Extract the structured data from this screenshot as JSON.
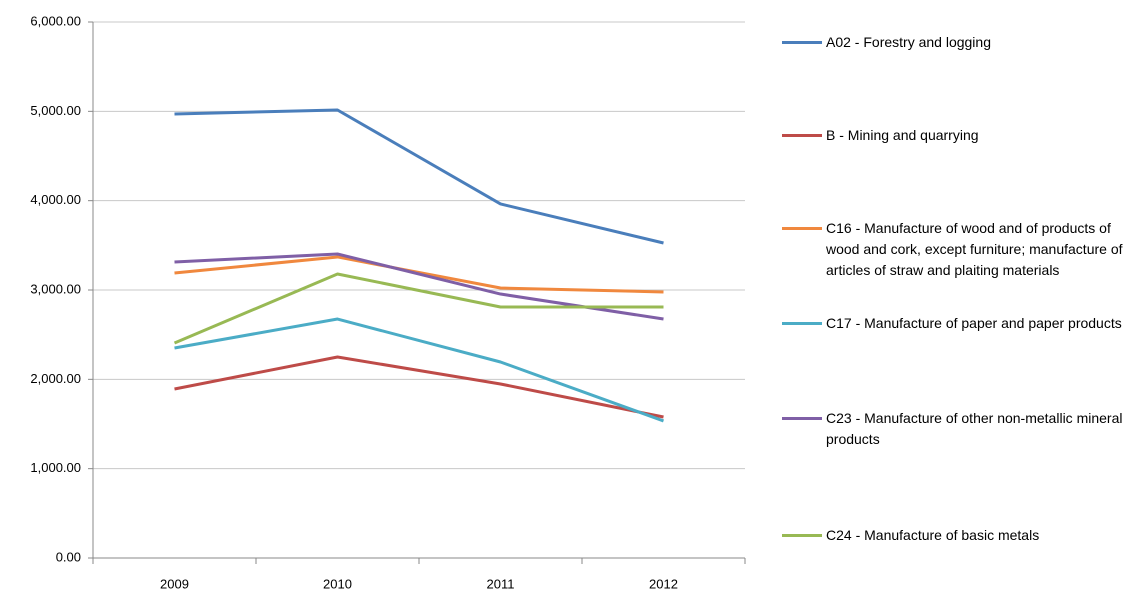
{
  "chart_data": {
    "type": "line",
    "categories": [
      "2009",
      "2010",
      "2011",
      "2012"
    ],
    "series": [
      {
        "name": "A02 - Forestry and logging",
        "color": "#4a7ebb",
        "values": [
          4970,
          5015,
          3963,
          3526
        ]
      },
      {
        "name": "B - Mining and quarrying",
        "color": "#be4b48",
        "values": [
          1892,
          2250,
          1948,
          1578
        ]
      },
      {
        "name": "C16 - Manufacture of wood and of products of wood and cork, except furniture; manufacture of articles of straw and plaiting materials",
        "color": "#f0883e",
        "values": [
          3190,
          3370,
          3022,
          2978
        ]
      },
      {
        "name": "C17 - Manufacture of paper and paper products",
        "color": "#4bacc6",
        "values": [
          2351,
          2675,
          2194,
          1534
        ]
      },
      {
        "name": "C23 - Manufacture of other non-metallic mineral products",
        "color": "#7f5fa6",
        "values": [
          3314,
          3403,
          2955,
          2675
        ]
      },
      {
        "name": "C24 - Manufacture of basic metals",
        "color": "#98b954",
        "values": [
          2407,
          3179,
          2810,
          2810
        ]
      }
    ],
    "ylim": [
      0,
      6000
    ],
    "yticks": [
      {
        "value": 0,
        "label": "0.00"
      },
      {
        "value": 1000,
        "label": "1,000.00"
      },
      {
        "value": 2000,
        "label": "2,000.00"
      },
      {
        "value": 3000,
        "label": "3,000.00"
      },
      {
        "value": 4000,
        "label": "4,000.00"
      },
      {
        "value": 5000,
        "label": "5,000.00"
      },
      {
        "value": 6000,
        "label": "6,000.00"
      }
    ],
    "grid": true
  }
}
